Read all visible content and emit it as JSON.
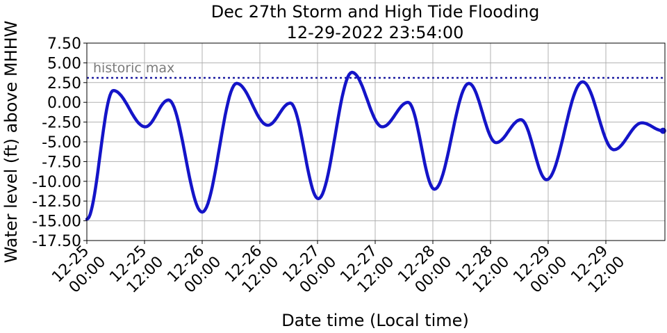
{
  "chart_data": {
    "type": "line",
    "title": "Dec 27th Storm and High Tide Flooding",
    "subtitle": "12-29-2022 23:54:00",
    "xlabel": "Date time (Local time)",
    "ylabel": "Water level (ft) above MHHW",
    "xlim": [
      "12-25 00:00",
      "12-29 23:54"
    ],
    "ylim": [
      -17.5,
      7.5
    ],
    "grid": true,
    "yticks": [
      "7.50",
      "5.00",
      "2.50",
      "0.00",
      "-2.50",
      "-5.00",
      "-7.50",
      "-10.00",
      "-12.50",
      "-15.00",
      "-17.50"
    ],
    "xticks": [
      {
        "date": "12-25",
        "time": "00:00"
      },
      {
        "date": "12-25",
        "time": "12:00"
      },
      {
        "date": "12-26",
        "time": "00:00"
      },
      {
        "date": "12-26",
        "time": "12:00"
      },
      {
        "date": "12-27",
        "time": "00:00"
      },
      {
        "date": "12-27",
        "time": "12:00"
      },
      {
        "date": "12-28",
        "time": "00:00"
      },
      {
        "date": "12-28",
        "time": "12:00"
      },
      {
        "date": "12-29",
        "time": "00:00"
      },
      {
        "date": "12-29",
        "time": "12:00"
      }
    ],
    "reference_line": {
      "label": "historic max",
      "value": 3.1,
      "color": "#1a1aa0"
    },
    "series": [
      {
        "color": "#1414c8",
        "points": [
          {
            "x": "12-25 00:00",
            "y": -14.8
          },
          {
            "x": "12-25 05:30",
            "y": 1.5
          },
          {
            "x": "12-25 12:10",
            "y": -3.1
          },
          {
            "x": "12-25 17:00",
            "y": 0.3
          },
          {
            "x": "12-26 00:00",
            "y": -13.9
          },
          {
            "x": "12-26 07:10",
            "y": 2.4
          },
          {
            "x": "12-26 13:40",
            "y": -2.9
          },
          {
            "x": "12-26 18:20",
            "y": -0.1
          },
          {
            "x": "12-27 00:10",
            "y": -12.2
          },
          {
            "x": "12-27 07:10",
            "y": 3.8
          },
          {
            "x": "12-27 13:30",
            "y": -3.1
          },
          {
            "x": "12-27 18:50",
            "y": 0.0
          },
          {
            "x": "12-28 00:20",
            "y": -11.0
          },
          {
            "x": "12-28 07:30",
            "y": 2.4
          },
          {
            "x": "12-28 13:10",
            "y": -5.1
          },
          {
            "x": "12-28 18:20",
            "y": -2.2
          },
          {
            "x": "12-28 23:40",
            "y": -9.8
          },
          {
            "x": "12-29 07:10",
            "y": 2.6
          },
          {
            "x": "12-29 13:40",
            "y": -6.0
          },
          {
            "x": "12-29 19:30",
            "y": -2.6
          },
          {
            "x": "12-29 23:54",
            "y": -3.6
          }
        ]
      }
    ]
  }
}
